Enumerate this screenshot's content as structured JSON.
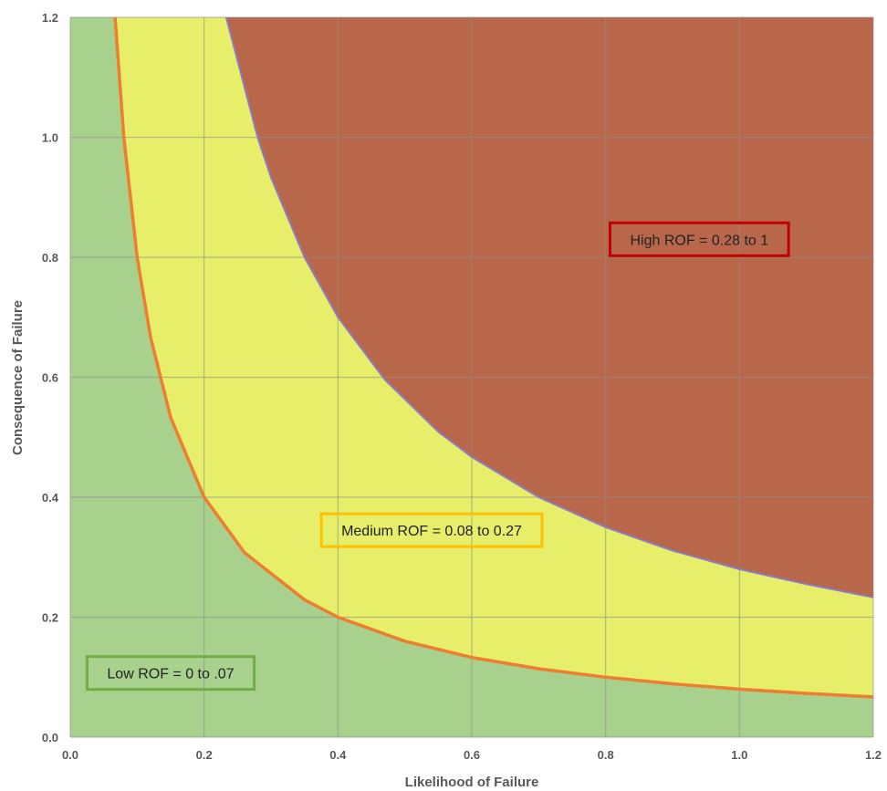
{
  "chart_data": {
    "type": "area",
    "xlabel": "Likelihood of Failure",
    "ylabel": "Consequence of Failure",
    "xlim": [
      0,
      1.2
    ],
    "ylim": [
      0,
      1.2
    ],
    "x_ticks": [
      "0.0",
      "0.2",
      "0.4",
      "0.6",
      "0.8",
      "1.0",
      "1.2"
    ],
    "y_ticks": [
      "0.0",
      "0.2",
      "0.4",
      "0.6",
      "0.8",
      "1.0",
      "1.2"
    ],
    "grid": true,
    "series": [
      {
        "name": "Low ROF = 0 to .07",
        "boundary_rof": 0.08,
        "color": "#a9d18e",
        "line_color": "#ed7d31",
        "x": [
          0.067,
          0.08,
          0.1,
          0.12,
          0.15,
          0.2,
          0.26,
          0.35,
          0.4,
          0.5,
          0.6,
          0.7,
          0.8,
          0.9,
          1.0,
          1.1,
          1.2
        ],
        "y": [
          1.2,
          1.0,
          0.8,
          0.667,
          0.533,
          0.4,
          0.308,
          0.229,
          0.2,
          0.16,
          0.133,
          0.114,
          0.1,
          0.089,
          0.08,
          0.073,
          0.067
        ]
      },
      {
        "name": "Medium ROF = 0.08 to 0.27",
        "boundary_rof": 0.28,
        "color": "#e6ee6a",
        "line_color": "#8e7cc3",
        "x": [
          0.233,
          0.28,
          0.3,
          0.35,
          0.4,
          0.47,
          0.55,
          0.6,
          0.7,
          0.8,
          0.9,
          1.0,
          1.1,
          1.2
        ],
        "y": [
          1.2,
          1.0,
          0.933,
          0.8,
          0.7,
          0.596,
          0.509,
          0.467,
          0.4,
          0.35,
          0.311,
          0.28,
          0.255,
          0.233
        ]
      },
      {
        "name": "High ROF = 0.28 to 1",
        "color": "#b9674a"
      }
    ],
    "annotations": [
      {
        "text": "High ROF = 0.28 to 1",
        "x": 0.94,
        "y": 0.83,
        "border": "#c00000"
      },
      {
        "text": "Medium ROF = 0.08 to 0.27",
        "x": 0.54,
        "y": 0.345,
        "border": "#ffc000"
      },
      {
        "text": "Low ROF = 0 to .07",
        "x": 0.15,
        "y": 0.107,
        "border": "#70ad47"
      }
    ]
  }
}
